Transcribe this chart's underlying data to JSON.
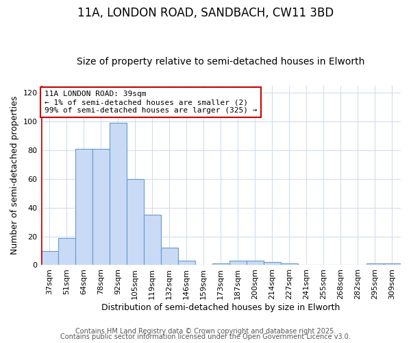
{
  "title": "11A, LONDON ROAD, SANDBACH, CW11 3BD",
  "subtitle": "Size of property relative to semi-detached houses in Elworth",
  "xlabel": "Distribution of semi-detached houses by size in Elworth",
  "ylabel": "Number of semi-detached properties",
  "categories": [
    "37sqm",
    "51sqm",
    "64sqm",
    "78sqm",
    "92sqm",
    "105sqm",
    "119sqm",
    "132sqm",
    "146sqm",
    "159sqm",
    "173sqm",
    "187sqm",
    "200sqm",
    "214sqm",
    "227sqm",
    "241sqm",
    "255sqm",
    "268sqm",
    "282sqm",
    "295sqm",
    "309sqm"
  ],
  "values": [
    10,
    19,
    81,
    81,
    99,
    60,
    35,
    12,
    3,
    0,
    1,
    3,
    3,
    2,
    1,
    0,
    0,
    0,
    0,
    1,
    1
  ],
  "bar_color": "#c8daf5",
  "bar_edge_color": "#6699cc",
  "highlight_color": "#cc0000",
  "ylim": [
    0,
    125
  ],
  "yticks": [
    0,
    20,
    40,
    60,
    80,
    100,
    120
  ],
  "annotation_title": "11A LONDON ROAD: 39sqm",
  "annotation_line1": "← 1% of semi-detached houses are smaller (2)",
  "annotation_line2": "99% of semi-detached houses are larger (325) →",
  "footer1": "Contains HM Land Registry data © Crown copyright and database right 2025.",
  "footer2": "Contains public sector information licensed under the Open Government Licence v3.0.",
  "background_color": "#ffffff",
  "plot_bg_color": "#ffffff",
  "grid_color": "#d0dcf0",
  "annotation_box_color": "#ffffff",
  "annotation_border_color": "#cc0000",
  "title_fontsize": 12,
  "subtitle_fontsize": 10,
  "axis_label_fontsize": 9,
  "tick_fontsize": 8,
  "annotation_fontsize": 8,
  "footer_fontsize": 7
}
